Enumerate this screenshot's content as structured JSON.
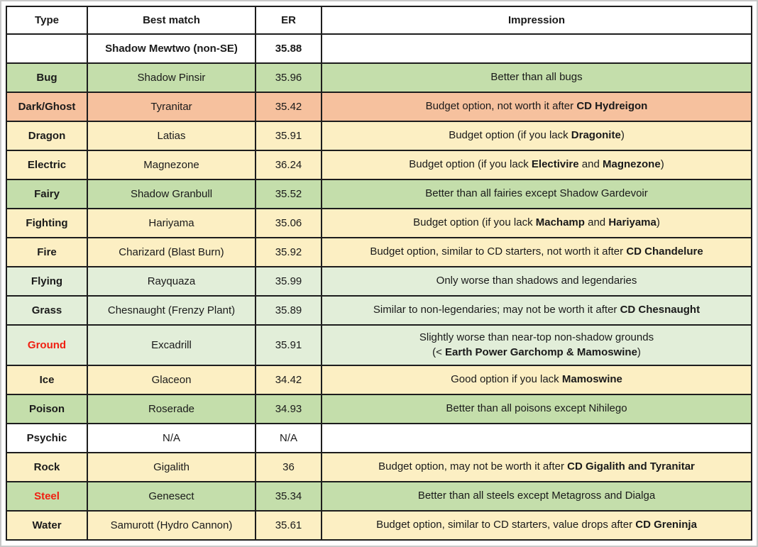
{
  "table": {
    "columns": [
      "Type",
      "Best match",
      "ER",
      "Impression"
    ],
    "benchmark": {
      "type": "",
      "best_match": "Shadow Mewtwo (non-SE)",
      "er": "35.88",
      "impression": []
    },
    "rows": [
      {
        "type": "Bug",
        "type_red": false,
        "best_match": "Shadow Pinsir",
        "er": "35.96",
        "bg": "green",
        "impression": [
          [
            {
              "t": "Better than all bugs",
              "b": false
            }
          ]
        ]
      },
      {
        "type": "Dark/Ghost",
        "type_red": false,
        "best_match": "Tyranitar",
        "er": "35.42",
        "bg": "orange",
        "impression": [
          [
            {
              "t": "Budget option, not worth it after ",
              "b": false
            },
            {
              "t": "CD Hydreigon",
              "b": true
            }
          ]
        ]
      },
      {
        "type": "Dragon",
        "type_red": false,
        "best_match": "Latias",
        "er": "35.91",
        "bg": "yellow",
        "impression": [
          [
            {
              "t": "Budget option (if you lack ",
              "b": false
            },
            {
              "t": "Dragonite",
              "b": true
            },
            {
              "t": ")",
              "b": false
            }
          ]
        ]
      },
      {
        "type": "Electric",
        "type_red": false,
        "best_match": "Magnezone",
        "er": "36.24",
        "bg": "yellow",
        "impression": [
          [
            {
              "t": "Budget option (if you lack ",
              "b": false
            },
            {
              "t": "Electivire",
              "b": true
            },
            {
              "t": " and ",
              "b": false
            },
            {
              "t": "Magnezone",
              "b": true
            },
            {
              "t": ")",
              "b": false
            }
          ]
        ]
      },
      {
        "type": "Fairy",
        "type_red": false,
        "best_match": "Shadow Granbull",
        "er": "35.52",
        "bg": "green",
        "impression": [
          [
            {
              "t": "Better than all fairies except Shadow Gardevoir",
              "b": false
            }
          ]
        ]
      },
      {
        "type": "Fighting",
        "type_red": false,
        "best_match": "Hariyama",
        "er": "35.06",
        "bg": "yellow",
        "impression": [
          [
            {
              "t": "Budget option (if you lack ",
              "b": false
            },
            {
              "t": "Machamp",
              "b": true
            },
            {
              "t": " and ",
              "b": false
            },
            {
              "t": "Hariyama",
              "b": true
            },
            {
              "t": ")",
              "b": false
            }
          ]
        ]
      },
      {
        "type": "Fire",
        "type_red": false,
        "best_match": "Charizard (Blast Burn)",
        "er": "35.92",
        "bg": "yellow",
        "impression": [
          [
            {
              "t": "Budget option, similar to CD starters, not worth it after ",
              "b": false
            },
            {
              "t": "CD Chandelure",
              "b": true
            }
          ]
        ]
      },
      {
        "type": "Flying",
        "type_red": false,
        "best_match": "Rayquaza",
        "er": "35.99",
        "bg": "pale_green",
        "impression": [
          [
            {
              "t": "Only worse than shadows and legendaries",
              "b": false
            }
          ]
        ]
      },
      {
        "type": "Grass",
        "type_red": false,
        "best_match": "Chesnaught (Frenzy Plant)",
        "er": "35.89",
        "bg": "pale_green",
        "impression": [
          [
            {
              "t": "Similar to non-legendaries; may not be worth it after ",
              "b": false
            },
            {
              "t": "CD Chesnaught",
              "b": true
            }
          ]
        ]
      },
      {
        "type": "Ground",
        "type_red": true,
        "best_match": "Excadrill",
        "er": "35.91",
        "bg": "pale_green",
        "tall": true,
        "impression": [
          [
            {
              "t": "Slightly worse than near-top non-shadow grounds",
              "b": false
            }
          ],
          [
            {
              "t": "(< ",
              "b": false
            },
            {
              "t": "Earth Power Garchomp & Mamoswine",
              "b": true
            },
            {
              "t": ")",
              "b": false
            }
          ]
        ]
      },
      {
        "type": "Ice",
        "type_red": false,
        "best_match": "Glaceon",
        "er": "34.42",
        "bg": "yellow",
        "impression": [
          [
            {
              "t": "Good option if you lack ",
              "b": false
            },
            {
              "t": "Mamoswine",
              "b": true
            }
          ]
        ]
      },
      {
        "type": "Poison",
        "type_red": false,
        "best_match": "Roserade",
        "er": "34.93",
        "bg": "green",
        "impression": [
          [
            {
              "t": "Better than all poisons except Nihilego",
              "b": false
            }
          ]
        ]
      },
      {
        "type": "Psychic",
        "type_red": false,
        "best_match": "N/A",
        "er": "N/A",
        "bg": "white",
        "impression": []
      },
      {
        "type": "Rock",
        "type_red": false,
        "best_match": "Gigalith",
        "er": "36",
        "bg": "yellow",
        "impression": [
          [
            {
              "t": "Budget option, may not be worth it after ",
              "b": false
            },
            {
              "t": "CD Gigalith and Tyranitar",
              "b": true
            }
          ]
        ]
      },
      {
        "type": "Steel",
        "type_red": true,
        "best_match": "Genesect",
        "er": "35.34",
        "bg": "green",
        "impression": [
          [
            {
              "t": "Better than all steels except Metagross and Dialga",
              "b": false
            }
          ]
        ]
      },
      {
        "type": "Water",
        "type_red": false,
        "best_match": "Samurott (Hydro Cannon)",
        "er": "35.61",
        "bg": "yellow",
        "impression": [
          [
            {
              "t": "Budget option, similar to CD starters, value drops after ",
              "b": false
            },
            {
              "t": "CD Greninja",
              "b": true
            }
          ]
        ]
      }
    ]
  },
  "colors": {
    "row_backgrounds": {
      "green": "#c4deab",
      "pale_green": "#e2eed9",
      "orange": "#f6c19e",
      "yellow": "#fcefc3",
      "white": "#ffffff"
    },
    "type_red_text": "#f01f11",
    "border": "#1d1d1d",
    "text": "#1a1a1a"
  }
}
